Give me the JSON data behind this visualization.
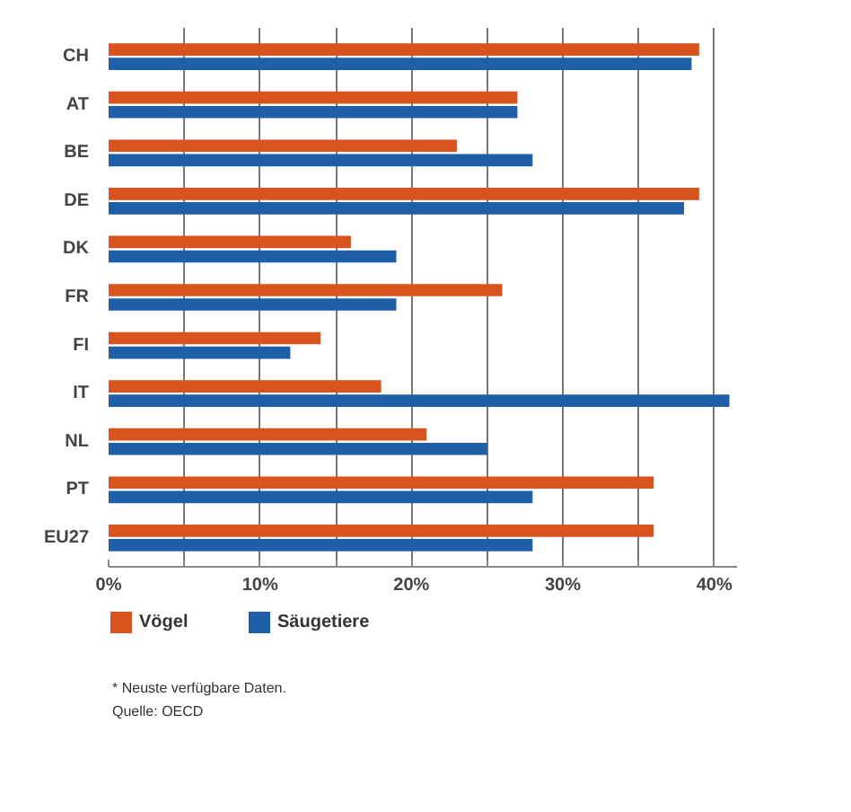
{
  "chart_data": {
    "type": "bar",
    "orientation": "horizontal",
    "categories": [
      "CH",
      "AT",
      "BE",
      "DE",
      "DK",
      "FR",
      "FI",
      "IT",
      "NL",
      "PT",
      "EU27"
    ],
    "series": [
      {
        "name": "Vögel",
        "color": "#d9531e",
        "values": [
          39,
          27,
          23,
          39,
          16,
          26,
          14,
          18,
          21,
          36,
          36
        ]
      },
      {
        "name": "Säugetiere",
        "color": "#1f5fa8",
        "values": [
          38.5,
          27,
          28,
          38,
          19,
          19,
          12,
          41,
          25,
          28,
          28
        ]
      }
    ],
    "xlim": [
      0,
      41.5
    ],
    "xticks": [
      {
        "value": 0,
        "label": "0%"
      },
      {
        "value": 5,
        "label": null
      },
      {
        "value": 10,
        "label": "10%"
      },
      {
        "value": 15,
        "label": null
      },
      {
        "value": 20,
        "label": "20%"
      },
      {
        "value": 25,
        "label": null
      },
      {
        "value": 30,
        "label": "30%"
      },
      {
        "value": 35,
        "label": null
      },
      {
        "value": 40,
        "label": "40%"
      }
    ],
    "grid": "x",
    "legend": "bottom left",
    "annotations": [
      "* Neuste verfügbare Daten.",
      "Quelle: OECD"
    ]
  }
}
